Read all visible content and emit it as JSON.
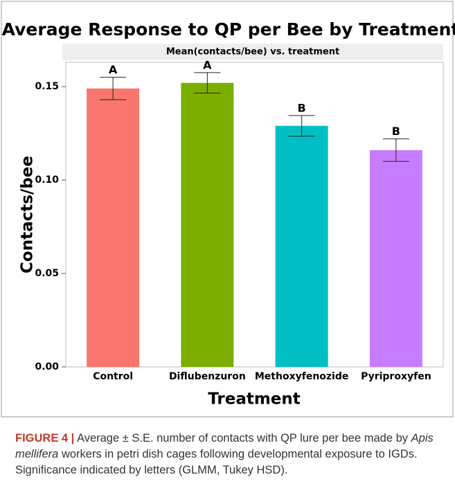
{
  "chart_data": {
    "type": "bar",
    "title": "Average Response to QP per Bee by Treatment",
    "subtitle": "Mean(contacts/bee) vs. treatment",
    "x_label": "Treatment",
    "y_label": "Contacts/bee",
    "categories": [
      "Control",
      "Diflubenzuron",
      "Methoxyfenozide",
      "Pyriproxyfen"
    ],
    "values": [
      0.149,
      0.152,
      0.129,
      0.116
    ],
    "errors": [
      0.006,
      0.0055,
      0.0055,
      0.006
    ],
    "letters": [
      "A",
      "A",
      "B",
      "B"
    ],
    "colors": [
      "#f8766d",
      "#7cae00",
      "#00bfc4",
      "#c77cff"
    ],
    "ylim": [
      0,
      0.163
    ],
    "yticks": [
      {
        "value": 0,
        "label": "0.00"
      },
      {
        "value": 0.05,
        "label": "0.05"
      },
      {
        "value": 0.1,
        "label": "0.10"
      },
      0.15
    ]
  },
  "caption": {
    "label": "FIGURE 4 |",
    "parts": [
      "Average ± S.E. number of contacts with QP lure per bee made by ",
      "Apis mellifera",
      " workers in petri dish cages following developmental exposure to IGDs. Significance indicated by letters (GLMM, Tukey HSD)."
    ]
  }
}
